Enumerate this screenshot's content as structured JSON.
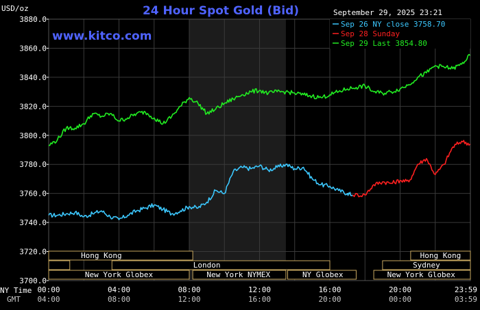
{
  "title": "24 Hour Spot Gold (Bid)",
  "site": "www.kitco.com",
  "unit_label": "USD/oz",
  "datetime": "September 29, 2025 23:21",
  "time_row_labels": {
    "ny": "NY Time",
    "gmt": "GMT"
  },
  "colors": {
    "background": "#000000",
    "grid": "#3a3a3a",
    "shade": "#1c1c1c",
    "title": "#4f63ff",
    "sep26": "#3cc8ff",
    "sep28": "#ff2020",
    "sep29": "#22ee22",
    "session_fill": "#000000",
    "session_border": "#c8a860"
  },
  "legend": [
    {
      "text": "Sep 26 NY close 3758.70",
      "color": "#3cc8ff"
    },
    {
      "text": "Sep 28 Sunday",
      "color": "#ff2020"
    },
    {
      "text": "Sep 29 Last 3854.80",
      "color": "#22ee22"
    }
  ],
  "sessions": [
    {
      "label": "Hong Kong",
      "rows": [
        {
          "row": 0,
          "from": 0,
          "to": 8.2
        }
      ],
      "label_row": 0,
      "label_at": 3.0
    },
    {
      "label": "London",
      "rows": [
        {
          "row": 1,
          "from": 3.6,
          "to": 16
        },
        {
          "row": 1,
          "from": 0,
          "to": 1.2
        }
      ],
      "label_row": 1,
      "label_at": 9.0
    },
    {
      "label": "New York Globex",
      "rows": [
        {
          "row": 2,
          "from": 0,
          "to": 8
        }
      ],
      "label_row": 2,
      "label_at": 4.0
    },
    {
      "label": "New York NYMEX",
      "rows": [
        {
          "row": 2,
          "from": 8.2,
          "to": 13.5
        }
      ],
      "label_row": 2,
      "label_at": 10.8
    },
    {
      "label": "NY Globex",
      "rows": [
        {
          "row": 2,
          "from": 13.6,
          "to": 17.5
        }
      ],
      "label_row": 2,
      "label_at": 15.6
    },
    {
      "label": "Hong Kong",
      "rows": [
        {
          "row": 0,
          "from": 20.6,
          "to": 24
        }
      ],
      "label_row": 0,
      "label_at": 22.3
    },
    {
      "label": "Sydney",
      "rows": [
        {
          "row": 1,
          "from": 19,
          "to": 24
        }
      ],
      "label_row": 1,
      "label_at": 21.5
    },
    {
      "label": "New York Globex",
      "rows": [
        {
          "row": 2,
          "from": 18.5,
          "to": 24
        }
      ],
      "label_row": 2,
      "label_at": 21.2
    }
  ],
  "chart_data": {
    "type": "line",
    "title": "24 Hour Spot Gold (Bid)",
    "ylabel": "USD/oz",
    "xlabel": "",
    "ylim": [
      3700,
      3880
    ],
    "xlim": [
      0,
      24
    ],
    "yticks": [
      "3700.0",
      "3720.0",
      "3740.0",
      "3760.0",
      "3780.0",
      "3800.0",
      "3820.0",
      "3840.0",
      "3860.0",
      "3880.0"
    ],
    "xticks_ny": [
      "00:00",
      "04:00",
      "08:00",
      "12:00",
      "16:00",
      "20:00",
      "23:59"
    ],
    "xticks_gmt": [
      "04:00",
      "08:00",
      "12:00",
      "16:00",
      "20:00",
      "00:00",
      "03:59"
    ],
    "x_tick_values": [
      0,
      4,
      8,
      12,
      16,
      20,
      23.98
    ],
    "grid": true,
    "shaded_region": [
      8,
      13.5
    ],
    "series": [
      {
        "name": "Sep 26 NY close 3758.70",
        "color": "#3cc8ff",
        "x": [
          0,
          0.5,
          1,
          1.5,
          2,
          2.5,
          3,
          3.5,
          4,
          4.5,
          5,
          5.5,
          6,
          6.5,
          7,
          7.5,
          8,
          8.5,
          9,
          9.5,
          10,
          10.5,
          11,
          11.5,
          12,
          12.5,
          13,
          13.5,
          14,
          14.5,
          15,
          15.5,
          16,
          16.5,
          17,
          17.3
        ],
        "values": [
          3745,
          3745,
          3746,
          3747,
          3744,
          3746,
          3748,
          3744,
          3742,
          3745,
          3748,
          3750,
          3752,
          3749,
          3746,
          3748,
          3751,
          3750,
          3754,
          3762,
          3760,
          3775,
          3778,
          3777,
          3779,
          3776,
          3778,
          3780,
          3777,
          3778,
          3770,
          3766,
          3765,
          3762,
          3760,
          3759
        ]
      },
      {
        "name": "Sep 28 Sunday",
        "color": "#ff2020",
        "x": [
          17.3,
          18,
          18.5,
          19,
          19.5,
          20,
          20.5,
          21,
          21.5,
          22,
          22.5,
          23,
          23.5,
          23.98
        ],
        "values": [
          3759,
          3759,
          3766,
          3768,
          3767,
          3769,
          3768,
          3780,
          3784,
          3773,
          3780,
          3792,
          3796,
          3794
        ]
      },
      {
        "name": "Sep 29 Last 3854.80",
        "color": "#22ee22",
        "x": [
          0,
          0.5,
          1,
          1.5,
          2,
          2.5,
          3,
          3.5,
          4,
          4.5,
          5,
          5.5,
          6,
          6.5,
          7,
          7.5,
          8,
          8.5,
          9,
          9.5,
          10,
          10.5,
          11,
          11.5,
          12,
          12.5,
          13,
          13.5,
          14,
          14.5,
          15,
          15.5,
          16,
          16.5,
          17,
          17.5,
          18,
          18.5,
          19,
          19.5,
          20,
          20.5,
          21,
          21.5,
          22,
          22.5,
          23,
          23.5,
          23.98
        ],
        "values": [
          3793,
          3797,
          3805,
          3805,
          3808,
          3815,
          3813,
          3815,
          3810,
          3812,
          3815,
          3816,
          3812,
          3808,
          3813,
          3820,
          3826,
          3822,
          3815,
          3818,
          3822,
          3825,
          3828,
          3830,
          3831,
          3829,
          3830,
          3830,
          3829,
          3828,
          3827,
          3826,
          3828,
          3830,
          3832,
          3833,
          3834,
          3830,
          3829,
          3830,
          3832,
          3835,
          3840,
          3843,
          3848,
          3847,
          3846,
          3849,
          3855
        ]
      }
    ]
  }
}
